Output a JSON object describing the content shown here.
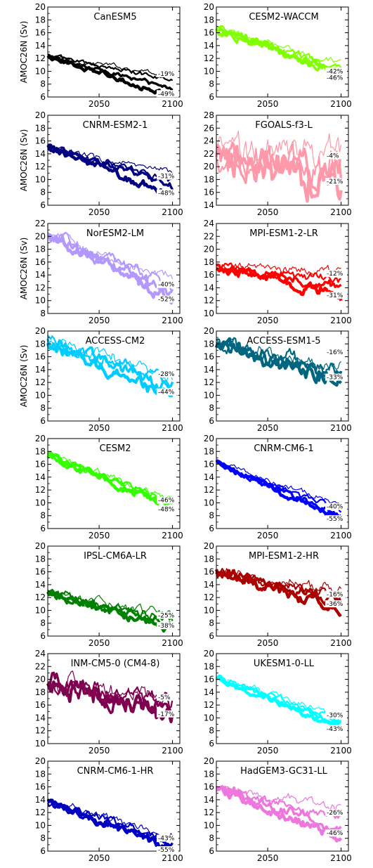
{
  "ylabel": "AMOC26N (Sv)",
  "chart_data": [
    {
      "type": "line",
      "title": "CanESM5",
      "color": "#000000",
      "ylim": [
        6,
        20
      ],
      "yticks": [
        6,
        8,
        10,
        12,
        14,
        16,
        18,
        20
      ],
      "xticks": [
        2050,
        2100
      ],
      "xlim": [
        2015,
        2105
      ],
      "start": 12.3,
      "ends": [
        9.5,
        8.8,
        7.3,
        6.2
      ],
      "noise": 0.25,
      "pct_labels": [
        {
          "text": "-19%",
          "y": 9.4
        },
        {
          "text": "-49%",
          "y": 6.3
        }
      ],
      "ylabel": true
    },
    {
      "type": "line",
      "title": "CESM2-WACCM",
      "color": "#80ff00",
      "ylim": [
        6,
        20
      ],
      "yticks": [
        6,
        8,
        10,
        12,
        14,
        16,
        18,
        20
      ],
      "xticks": [
        2050,
        2100
      ],
      "xlim": [
        2015,
        2105
      ],
      "start": 16.5,
      "ends": [
        11.0,
        10.5,
        10.0,
        9.6
      ],
      "noise": 0.45,
      "pct_labels": [
        {
          "text": "-42%",
          "y": 9.8
        },
        {
          "text": "-46%",
          "y": 8.8
        }
      ],
      "ylabel": false
    },
    {
      "type": "line",
      "title": "CNRM-ESM2-1",
      "color": "#000080",
      "ylim": [
        6,
        20
      ],
      "yticks": [
        6,
        8,
        10,
        12,
        14,
        16,
        18,
        20
      ],
      "xticks": [
        2050,
        2100
      ],
      "xlim": [
        2015,
        2105
      ],
      "start": 15.0,
      "ends": [
        10.8,
        10.0,
        9.0,
        7.6
      ],
      "noise": 0.4,
      "pct_labels": [
        {
          "text": "-31%",
          "y": 10.3
        },
        {
          "text": "-48%",
          "y": 7.7
        }
      ],
      "ylabel": true
    },
    {
      "type": "line",
      "title": "FGOALS-f3-L",
      "color": "#ff99aa",
      "ylim": [
        14,
        28
      ],
      "yticks": [
        14,
        16,
        18,
        20,
        22,
        24,
        26,
        28
      ],
      "xticks": [
        2050,
        2100
      ],
      "xlim": [
        2015,
        2105
      ],
      "start": 22.0,
      "ends": [
        22.0,
        20.0,
        18.5,
        17.0
      ],
      "noise": 1.8,
      "pct_labels": [
        {
          "text": "-4%",
          "y": 21.5
        },
        {
          "text": "-21%",
          "y": 17.5
        }
      ],
      "ylabel": false
    },
    {
      "type": "line",
      "title": "NorESM2-LM",
      "color": "#b399ff",
      "ylim": [
        8,
        22
      ],
      "yticks": [
        8,
        10,
        12,
        14,
        16,
        18,
        20,
        22
      ],
      "xticks": [
        2050,
        2100
      ],
      "xlim": [
        2015,
        2105
      ],
      "start": 20.5,
      "ends": [
        13.0,
        12.0,
        11.0,
        10.0
      ],
      "noise": 0.6,
      "pct_labels": [
        {
          "text": "-40%",
          "y": 12.3
        },
        {
          "text": "-52%",
          "y": 10.0
        }
      ],
      "ylabel": true
    },
    {
      "type": "line",
      "title": "MPI-ESM1-2-LR",
      "color": "#ff0000",
      "ylim": [
        10,
        24
      ],
      "yticks": [
        10,
        12,
        14,
        16,
        18,
        20,
        22,
        24
      ],
      "xticks": [
        2050,
        2100
      ],
      "xlim": [
        2015,
        2105
      ],
      "start": 17.2,
      "ends": [
        16.5,
        15.0,
        14.0,
        13.0
      ],
      "noise": 0.5,
      "pct_labels": [
        {
          "text": "-12%",
          "y": 16.0
        },
        {
          "text": "-31%",
          "y": 12.6
        }
      ],
      "ylabel": false
    },
    {
      "type": "line",
      "title": "ACCESS-CM2",
      "color": "#00ccff",
      "ylim": [
        6,
        20
      ],
      "yticks": [
        6,
        8,
        10,
        12,
        14,
        16,
        18,
        20
      ],
      "xticks": [
        2050,
        2100
      ],
      "xlim": [
        2015,
        2105
      ],
      "start": 18.5,
      "ends": [
        13.0,
        12.0,
        11.0,
        9.5
      ],
      "noise": 0.7,
      "pct_labels": [
        {
          "text": "-28%",
          "y": 13.1
        },
        {
          "text": "-44%",
          "y": 10.3
        }
      ],
      "ylabel": true
    },
    {
      "type": "line",
      "title": "ACCESS-ESM1-5",
      "color": "#006680",
      "ylim": [
        6,
        20
      ],
      "yticks": [
        6,
        8,
        10,
        12,
        14,
        16,
        18,
        20
      ],
      "xticks": [
        2050,
        2100
      ],
      "xlim": [
        2015,
        2105
      ],
      "start": 18.0,
      "ends": [
        14.5,
        13.5,
        13.0,
        12.5
      ],
      "noise": 0.8,
      "pct_labels": [
        {
          "text": "-16%",
          "y": 16.5
        },
        {
          "text": "-33%",
          "y": 12.6
        }
      ],
      "ylabel": false
    },
    {
      "type": "line",
      "title": "CESM2",
      "color": "#33ff00",
      "ylim": [
        6,
        20
      ],
      "yticks": [
        6,
        8,
        10,
        12,
        14,
        16,
        18,
        20
      ],
      "xticks": [
        2050,
        2100
      ],
      "xlim": [
        2015,
        2105
      ],
      "start": 17.3,
      "ends": [
        10.8,
        10.2,
        9.8,
        9.4
      ],
      "noise": 0.4,
      "pct_labels": [
        {
          "text": "-46%",
          "y": 10.2
        },
        {
          "text": "-48%",
          "y": 8.8
        }
      ],
      "ylabel": false
    },
    {
      "type": "line",
      "title": "CNRM-CM6-1",
      "color": "#0000ff",
      "ylim": [
        6,
        20
      ],
      "yticks": [
        6,
        8,
        10,
        12,
        14,
        16,
        18,
        20
      ],
      "xticks": [
        2050,
        2100
      ],
      "xlim": [
        2015,
        2105
      ],
      "start": 16.3,
      "ends": [
        9.6,
        8.8,
        8.0,
        7.3
      ],
      "noise": 0.3,
      "pct_labels": [
        {
          "text": "-40%",
          "y": 9.2
        },
        {
          "text": "-55%",
          "y": 7.3
        }
      ],
      "ylabel": false
    },
    {
      "type": "line",
      "title": "IPSL-CM6A-LR",
      "color": "#008000",
      "ylim": [
        6,
        20
      ],
      "yticks": [
        6,
        8,
        10,
        12,
        14,
        16,
        18,
        20
      ],
      "xticks": [
        2050,
        2100
      ],
      "xlim": [
        2015,
        2105
      ],
      "start": 12.5,
      "ends": [
        9.2,
        8.5,
        8.0,
        7.2
      ],
      "noise": 0.5,
      "pct_labels": [
        {
          "text": "-25%",
          "y": 9.0
        },
        {
          "text": "-38%",
          "y": 7.4
        }
      ],
      "ylabel": false
    },
    {
      "type": "line",
      "title": "MPI-ESM1-2-HR",
      "color": "#aa0000",
      "ylim": [
        6,
        20
      ],
      "yticks": [
        6,
        8,
        10,
        12,
        14,
        16,
        18,
        20
      ],
      "xticks": [
        2050,
        2100
      ],
      "xlim": [
        2015,
        2105
      ],
      "start": 16.0,
      "ends": [
        13.0,
        12.0,
        11.2,
        10.2
      ],
      "noise": 0.6,
      "pct_labels": [
        {
          "text": "-16%",
          "y": 12.3
        },
        {
          "text": "-36%",
          "y": 10.8
        }
      ],
      "ylabel": false
    },
    {
      "type": "line",
      "title": "INM-CM5-0 (CM4-8)",
      "color": "#800050",
      "ylim": [
        10,
        24
      ],
      "yticks": [
        10,
        12,
        14,
        16,
        18,
        20,
        22,
        24
      ],
      "xticks": [
        2050,
        2100
      ],
      "xlim": [
        2015,
        2105
      ],
      "start": 19.5,
      "ends": [
        17.5,
        16.0,
        15.0,
        14.0
      ],
      "noise": 1.0,
      "pct_labels": [
        {
          "text": "-5%",
          "y": 17.0
        },
        {
          "text": "-17%",
          "y": 14.4
        }
      ],
      "ylabel": false
    },
    {
      "type": "line",
      "title": "UKESM1-0-LL",
      "color": "#00ffff",
      "ylim": [
        6,
        20
      ],
      "yticks": [
        6,
        8,
        10,
        12,
        14,
        16,
        18,
        20
      ],
      "xticks": [
        2050,
        2100
      ],
      "xlim": [
        2015,
        2105
      ],
      "start": 16.2,
      "ends": [
        10.2,
        9.6,
        9.0,
        8.3
      ],
      "noise": 0.35,
      "pct_labels": [
        {
          "text": "-30%",
          "y": 10.2
        },
        {
          "text": "-43%",
          "y": 8.1
        }
      ],
      "ylabel": false
    },
    {
      "type": "line",
      "title": "CNRM-CM6-1-HR",
      "color": "#0000c0",
      "ylim": [
        6,
        20
      ],
      "yticks": [
        6,
        8,
        10,
        12,
        14,
        16,
        18,
        20
      ],
      "xticks": [
        2050,
        2100
      ],
      "xlim": [
        2015,
        2105
      ],
      "start": 13.8,
      "ends": [
        8.3,
        7.6,
        6.8,
        6.1
      ],
      "noise": 0.45,
      "pct_labels": [
        {
          "text": "-43%",
          "y": 7.8
        },
        {
          "text": "-55%",
          "y": 6.0
        }
      ],
      "ylabel": false
    },
    {
      "type": "line",
      "title": "HadGEM3-GC31-LL",
      "color": "#ee77dd",
      "ylim": [
        6,
        20
      ],
      "yticks": [
        6,
        8,
        10,
        12,
        14,
        16,
        18,
        20
      ],
      "xticks": [
        2050,
        2100
      ],
      "xlim": [
        2015,
        2105
      ],
      "start": 15.8,
      "ends": [
        12.8,
        11.0,
        9.5,
        8.0
      ],
      "noise": 0.5,
      "pct_labels": [
        {
          "text": "-26%",
          "y": 11.8
        },
        {
          "text": "-46%",
          "y": 8.6
        }
      ],
      "ylabel": false
    }
  ]
}
